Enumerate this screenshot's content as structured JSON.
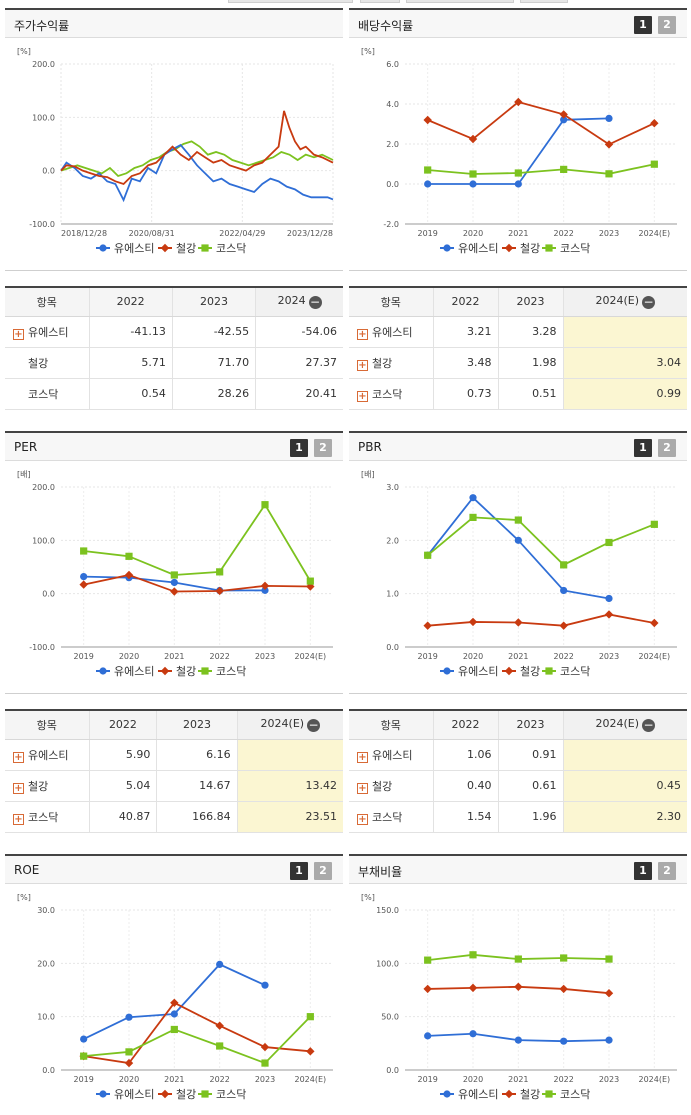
{
  "colors": {
    "blue": "#2f6ed6",
    "red": "#c83a10",
    "green": "#7cc21f"
  },
  "legend": {
    "s1": "유에스티",
    "s2": "철강",
    "s3": "코스닥"
  },
  "panels": {
    "stock": {
      "title": "주가수익률",
      "unit": "[%]",
      "chart_data": {
        "type": "line",
        "title": "주가수익률",
        "ylim": [
          -100,
          200
        ],
        "yticks": [
          "200.0",
          "100.0",
          "0.0",
          "-100.0"
        ],
        "xticks": [
          "2018/12/28",
          "2020/08/31",
          "2022/04/29",
          "2023/12/28"
        ],
        "series": [
          {
            "name": "유에스티",
            "t": [
              0,
              0.02,
              0.05,
              0.08,
              0.11,
              0.14,
              0.17,
              0.2,
              0.23,
              0.26,
              0.29,
              0.32,
              0.35,
              0.38,
              0.41,
              0.44,
              0.47,
              0.5,
              0.53,
              0.56,
              0.59,
              0.62,
              0.65,
              0.68,
              0.71,
              0.74,
              0.77,
              0.8,
              0.83,
              0.86,
              0.89,
              0.92,
              0.95,
              0.98,
              1
            ],
            "values": [
              0,
              15,
              5,
              -10,
              -15,
              -5,
              -20,
              -25,
              -55,
              -15,
              -20,
              5,
              -5,
              30,
              40,
              48,
              30,
              10,
              -5,
              -20,
              -15,
              -25,
              -30,
              -35,
              -40,
              -25,
              -15,
              -20,
              -30,
              -35,
              -45,
              -50,
              -50,
              -50,
              -54
            ]
          },
          {
            "name": "철강",
            "t": [
              0,
              0.02,
              0.05,
              0.08,
              0.11,
              0.14,
              0.17,
              0.2,
              0.23,
              0.26,
              0.29,
              0.32,
              0.35,
              0.38,
              0.41,
              0.44,
              0.47,
              0.5,
              0.53,
              0.56,
              0.59,
              0.62,
              0.65,
              0.68,
              0.71,
              0.74,
              0.77,
              0.8,
              0.82,
              0.84,
              0.86,
              0.88,
              0.9,
              0.93,
              0.96,
              1
            ],
            "values": [
              0,
              10,
              8,
              0,
              -5,
              -10,
              -12,
              -20,
              -25,
              -10,
              -5,
              10,
              15,
              30,
              45,
              30,
              20,
              35,
              25,
              15,
              20,
              10,
              5,
              0,
              10,
              15,
              30,
              45,
              112,
              80,
              55,
              40,
              45,
              30,
              25,
              15
            ]
          },
          {
            "name": "코스닥",
            "t": [
              0,
              0.03,
              0.06,
              0.09,
              0.12,
              0.15,
              0.18,
              0.21,
              0.24,
              0.27,
              0.3,
              0.33,
              0.36,
              0.39,
              0.42,
              0.45,
              0.48,
              0.51,
              0.54,
              0.57,
              0.6,
              0.63,
              0.66,
              0.69,
              0.72,
              0.75,
              0.78,
              0.81,
              0.84,
              0.87,
              0.9,
              0.93,
              0.96,
              1
            ],
            "values": [
              0,
              5,
              10,
              5,
              0,
              -5,
              5,
              -10,
              -5,
              5,
              10,
              20,
              25,
              35,
              40,
              50,
              55,
              45,
              30,
              35,
              30,
              20,
              15,
              10,
              15,
              20,
              25,
              35,
              30,
              20,
              30,
              25,
              30,
              20
            ]
          }
        ]
      }
    },
    "dividend": {
      "title": "배당수익률",
      "unit": "[%]",
      "chart_data": {
        "type": "line",
        "title": "배당수익률",
        "ylim": [
          -2,
          6
        ],
        "yticks": [
          "6.0",
          "4.0",
          "2.0",
          "0.0",
          "-2.0"
        ],
        "categories": [
          "2019",
          "2020",
          "2021",
          "2022",
          "2023",
          "2024(E)"
        ],
        "series": [
          {
            "name": "유에스티",
            "values": [
              0,
              0,
              0,
              3.21,
              3.28,
              null
            ]
          },
          {
            "name": "철강",
            "values": [
              3.2,
              2.25,
              4.1,
              3.48,
              1.98,
              3.04
            ]
          },
          {
            "name": "코스닥",
            "values": [
              0.7,
              0.5,
              0.55,
              0.73,
              0.51,
              0.99
            ]
          }
        ]
      }
    },
    "per": {
      "title": "PER",
      "unit": "[배]",
      "chart_data": {
        "type": "line",
        "title": "PER",
        "ylim": [
          -100,
          200
        ],
        "yticks": [
          "200.0",
          "100.0",
          "0.0",
          "-100.0"
        ],
        "categories": [
          "2019",
          "2020",
          "2021",
          "2022",
          "2023",
          "2024(E)"
        ],
        "series": [
          {
            "name": "유에스티",
            "values": [
              32,
              30,
              21,
              5.9,
              6.16,
              null
            ]
          },
          {
            "name": "철강",
            "values": [
              17,
              35,
              4,
              5.04,
              14.67,
              13.42
            ]
          },
          {
            "name": "코스닥",
            "values": [
              80,
              70,
              35,
              40.87,
              166.84,
              23.51
            ]
          }
        ]
      }
    },
    "pbr": {
      "title": "PBR",
      "unit": "[배]",
      "chart_data": {
        "type": "line",
        "title": "PBR",
        "ylim": [
          0,
          3
        ],
        "yticks": [
          "3.0",
          "2.0",
          "1.0",
          "0.0"
        ],
        "categories": [
          "2019",
          "2020",
          "2021",
          "2022",
          "2023",
          "2024(E)"
        ],
        "series": [
          {
            "name": "유에스티",
            "values": [
              1.72,
              2.8,
              2.0,
              1.06,
              0.91,
              null
            ]
          },
          {
            "name": "철강",
            "values": [
              0.4,
              0.47,
              0.46,
              0.4,
              0.61,
              0.45
            ]
          },
          {
            "name": "코스닥",
            "values": [
              1.72,
              2.43,
              2.38,
              1.54,
              1.96,
              2.3
            ]
          }
        ]
      }
    },
    "roe": {
      "title": "ROE",
      "unit": "[%]",
      "chart_data": {
        "type": "line",
        "title": "ROE",
        "ylim": [
          0,
          30
        ],
        "yticks": [
          "30.0",
          "20.0",
          "10.0",
          "0.0"
        ],
        "categories": [
          "2019",
          "2020",
          "2021",
          "2022",
          "2023",
          "2024(E)"
        ],
        "series": [
          {
            "name": "유에스티",
            "values": [
              5.8,
              9.9,
              10.5,
              19.8,
              15.9,
              null
            ]
          },
          {
            "name": "철강",
            "values": [
              2.6,
              1.3,
              12.6,
              8.3,
              4.3,
              3.5
            ]
          },
          {
            "name": "코스닥",
            "values": [
              2.6,
              3.4,
              7.6,
              4.5,
              1.3,
              10
            ]
          }
        ]
      }
    },
    "debt": {
      "title": "부채비율",
      "unit": "[%]",
      "chart_data": {
        "type": "line",
        "title": "부채비율",
        "ylim": [
          0,
          150
        ],
        "yticks": [
          "150.0",
          "100.0",
          "50.0",
          "0.0"
        ],
        "categories": [
          "2019",
          "2020",
          "2021",
          "2022",
          "2023",
          "2024(E)"
        ],
        "series": [
          {
            "name": "유에스티",
            "values": [
              32,
              34,
              28,
              27,
              28,
              null
            ]
          },
          {
            "name": "철강",
            "values": [
              76,
              77,
              78,
              76,
              72,
              null
            ]
          },
          {
            "name": "코스닥",
            "values": [
              103,
              108,
              104,
              105,
              104,
              null
            ]
          }
        ]
      }
    }
  },
  "tables": {
    "stock": {
      "header": [
        "항목",
        "2022",
        "2023",
        "2024"
      ],
      "rows": [
        {
          "name": "유에스티",
          "plus": true,
          "vals": [
            "-41.13",
            "-42.55",
            "-54.06"
          ]
        },
        {
          "name": "철강",
          "plus": false,
          "vals": [
            "5.71",
            "71.70",
            "27.37"
          ]
        },
        {
          "name": "코스닥",
          "plus": false,
          "vals": [
            "0.54",
            "28.26",
            "20.41"
          ]
        }
      ]
    },
    "dividend": {
      "header": [
        "항목",
        "2022",
        "2023",
        "2024(E)"
      ],
      "rows": [
        {
          "name": "유에스티",
          "plus": true,
          "vals": [
            "3.21",
            "3.28",
            ""
          ]
        },
        {
          "name": "철강",
          "plus": true,
          "vals": [
            "3.48",
            "1.98",
            "3.04"
          ]
        },
        {
          "name": "코스닥",
          "plus": true,
          "vals": [
            "0.73",
            "0.51",
            "0.99"
          ]
        }
      ]
    },
    "per": {
      "header": [
        "항목",
        "2022",
        "2023",
        "2024(E)"
      ],
      "rows": [
        {
          "name": "유에스티",
          "plus": true,
          "vals": [
            "5.90",
            "6.16",
            ""
          ]
        },
        {
          "name": "철강",
          "plus": true,
          "vals": [
            "5.04",
            "14.67",
            "13.42"
          ]
        },
        {
          "name": "코스닥",
          "plus": true,
          "vals": [
            "40.87",
            "166.84",
            "23.51"
          ]
        }
      ]
    },
    "pbr": {
      "header": [
        "항목",
        "2022",
        "2023",
        "2024(E)"
      ],
      "rows": [
        {
          "name": "유에스티",
          "plus": true,
          "vals": [
            "1.06",
            "0.91",
            ""
          ]
        },
        {
          "name": "철강",
          "plus": true,
          "vals": [
            "0.40",
            "0.61",
            "0.45"
          ]
        },
        {
          "name": "코스닥",
          "plus": true,
          "vals": [
            "1.54",
            "1.96",
            "2.30"
          ]
        }
      ]
    }
  },
  "pager": {
    "p1": "1",
    "p2": "2"
  }
}
